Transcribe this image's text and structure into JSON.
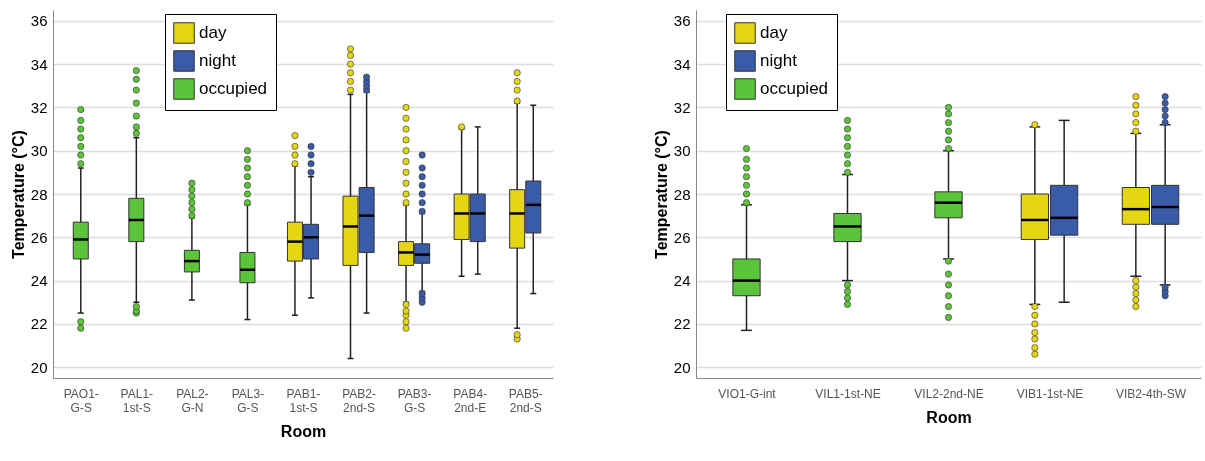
{
  "chart_data": [
    {
      "type": "box",
      "xlabel": "Room",
      "ylabel": "Temperature (°C)",
      "categories": [
        "PAO1-G-S",
        "PAL1-1st-S",
        "PAL2-G-N",
        "PAL3-G-S",
        "PAB1-1st-S",
        "PAB2-2nd-S",
        "PAB3-G-S",
        "PAB4-2nd-E",
        "PAB5-2nd-S"
      ],
      "ylim": [
        19.5,
        36.5
      ],
      "yticks": [
        20,
        22,
        24,
        26,
        28,
        30,
        32,
        34,
        36
      ],
      "grid": "y",
      "legend": "top left",
      "series": [
        {
          "name": "day",
          "color": "#e5d613",
          "boxes": [
            null,
            null,
            null,
            null,
            {
              "low": 22.4,
              "q1": 24.9,
              "median": 25.8,
              "q3": 26.7,
              "high": 29.3,
              "outliers": [
                29.4,
                29.8,
                30.2,
                30.7
              ]
            },
            {
              "low": 20.4,
              "q1": 24.7,
              "median": 26.5,
              "q3": 27.9,
              "high": 32.6,
              "outliers": [
                32.8,
                33.2,
                33.6,
                34.0,
                34.4,
                34.7
              ]
            },
            {
              "low": 23.0,
              "q1": 24.7,
              "median": 25.3,
              "q3": 25.8,
              "high": 27.5,
              "outliers": [
                21.8,
                22.1,
                22.4,
                22.6,
                22.9,
                27.6,
                28.0,
                28.5,
                29.0,
                29.5,
                30.0,
                30.5,
                31.0,
                31.5,
                32.0
              ]
            },
            {
              "low": 24.2,
              "q1": 25.9,
              "median": 27.1,
              "q3": 28.0,
              "high": 31.0,
              "outliers": [
                31.1
              ]
            },
            {
              "low": 21.8,
              "q1": 25.5,
              "median": 27.1,
              "q3": 28.2,
              "high": 32.2,
              "outliers": [
                21.3,
                21.5,
                32.3,
                32.8,
                33.2,
                33.6
              ]
            }
          ]
        },
        {
          "name": "night",
          "color": "#3a5ba8",
          "boxes": [
            null,
            null,
            null,
            null,
            {
              "low": 23.2,
              "q1": 25.0,
              "median": 26.0,
              "q3": 26.6,
              "high": 28.8,
              "outliers": [
                29.0,
                29.4,
                29.8,
                30.2
              ]
            },
            {
              "low": 22.5,
              "q1": 25.3,
              "median": 27.0,
              "q3": 28.3,
              "high": 32.7,
              "outliers": [
                32.8,
                33.0,
                33.2,
                33.4
              ]
            },
            {
              "low": 23.5,
              "q1": 24.8,
              "median": 25.2,
              "q3": 25.7,
              "high": 27.1,
              "outliers": [
                23.0,
                23.2,
                23.4,
                27.2,
                27.6,
                28.0,
                28.4,
                28.8,
                29.2,
                29.8
              ]
            },
            {
              "low": 24.3,
              "q1": 25.8,
              "median": 27.1,
              "q3": 28.0,
              "high": 31.1
            },
            {
              "low": 23.4,
              "q1": 26.2,
              "median": 27.5,
              "q3": 28.6,
              "high": 32.1
            }
          ]
        },
        {
          "name": "occupied",
          "color": "#5cc43a",
          "boxes": [
            {
              "low": 22.5,
              "q1": 25.0,
              "median": 25.9,
              "q3": 26.7,
              "high": 29.2,
              "outliers": [
                21.8,
                22.1,
                29.4,
                29.8,
                30.2,
                30.6,
                31.0,
                31.4,
                31.9
              ]
            },
            {
              "low": 23.0,
              "q1": 25.8,
              "median": 26.8,
              "q3": 27.8,
              "high": 30.6,
              "outliers": [
                22.5,
                22.6,
                22.8,
                30.8,
                31.1,
                31.6,
                32.2,
                32.8,
                33.3,
                33.7
              ]
            },
            {
              "low": 23.1,
              "q1": 24.4,
              "median": 24.9,
              "q3": 25.4,
              "high": 26.9,
              "outliers": [
                27.0,
                27.3,
                27.6,
                27.9,
                28.2,
                28.5
              ]
            },
            {
              "low": 22.2,
              "q1": 23.9,
              "median": 24.5,
              "q3": 25.3,
              "high": 27.5,
              "outliers": [
                27.6,
                28.0,
                28.4,
                28.8,
                29.2,
                29.6,
                30.0
              ]
            },
            null,
            null,
            null,
            null,
            null
          ]
        }
      ]
    },
    {
      "type": "box",
      "xlabel": "Room",
      "ylabel": "Temperature (°C)",
      "categories": [
        "VIO1-G-int",
        "VIL1-1st-NE",
        "VIL2-2nd-NE",
        "VIB1-1st-NE",
        "VIB2-4th-SW"
      ],
      "ylim": [
        19.5,
        36.5
      ],
      "yticks": [
        20,
        22,
        24,
        26,
        28,
        30,
        32,
        34,
        36
      ],
      "grid": "y",
      "legend": "top left",
      "series": [
        {
          "name": "day",
          "color": "#e5d613",
          "boxes": [
            null,
            null,
            null,
            {
              "low": 22.9,
              "q1": 25.9,
              "median": 26.8,
              "q3": 28.0,
              "high": 31.1,
              "outliers": [
                20.6,
                20.9,
                21.3,
                21.6,
                22.0,
                22.4,
                22.8,
                31.2
              ]
            },
            {
              "low": 24.2,
              "q1": 26.6,
              "median": 27.3,
              "q3": 28.3,
              "high": 30.8,
              "outliers": [
                22.8,
                23.1,
                23.4,
                23.7,
                24.0,
                30.9,
                31.3,
                31.7,
                32.1,
                32.5
              ]
            }
          ]
        },
        {
          "name": "night",
          "color": "#3a5ba8",
          "boxes": [
            null,
            null,
            null,
            {
              "low": 23.0,
              "q1": 26.1,
              "median": 26.9,
              "q3": 28.4,
              "high": 31.4
            },
            {
              "low": 23.8,
              "q1": 26.6,
              "median": 27.4,
              "q3": 28.4,
              "high": 31.2,
              "outliers": [
                23.3,
                23.5,
                23.7,
                31.3,
                31.6,
                31.9,
                32.2,
                32.5
              ]
            }
          ]
        },
        {
          "name": "occupied",
          "color": "#5cc43a",
          "boxes": [
            {
              "low": 21.7,
              "q1": 23.3,
              "median": 24.0,
              "q3": 25.0,
              "high": 27.5,
              "outliers": [
                27.6,
                28.0,
                28.4,
                28.8,
                29.2,
                29.6,
                30.1
              ]
            },
            {
              "low": 24.0,
              "q1": 25.8,
              "median": 26.5,
              "q3": 27.1,
              "high": 28.9,
              "outliers": [
                22.9,
                23.2,
                23.5,
                23.8,
                29.0,
                29.4,
                29.8,
                30.2,
                30.6,
                31.0,
                31.4
              ]
            },
            {
              "low": 25.0,
              "q1": 26.9,
              "median": 27.6,
              "q3": 28.1,
              "high": 30.0,
              "outliers": [
                22.3,
                22.8,
                23.3,
                23.8,
                24.3,
                24.9,
                30.1,
                30.5,
                30.9,
                31.3,
                31.7,
                32.0
              ]
            },
            null,
            null
          ]
        }
      ]
    }
  ]
}
